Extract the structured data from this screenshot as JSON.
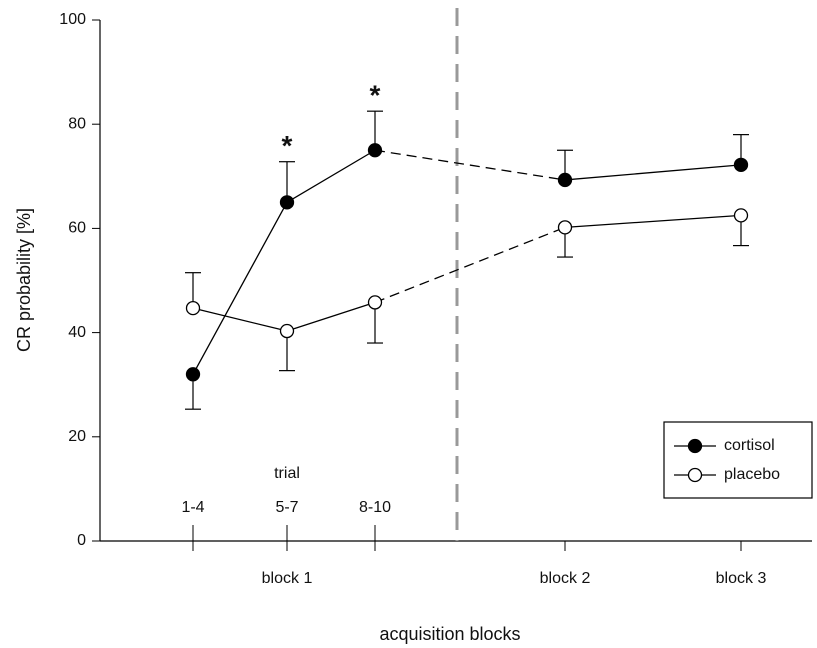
{
  "chart_data": {
    "type": "line",
    "y_label": "CR probability [%]",
    "x_label": "acquisition blocks",
    "categories": [
      "1-4",
      "5-7",
      "8-10",
      "block 2",
      "block 3"
    ],
    "group_label": "block 1",
    "trial_label": "trial",
    "ylim": [
      0,
      100
    ],
    "yticks": [
      0,
      20,
      40,
      60,
      80,
      100
    ],
    "series": [
      {
        "name": "cortisol",
        "color": "#000000",
        "filled": true,
        "values": [
          32,
          65,
          75,
          69.3,
          72.2
        ],
        "errors": [
          6.7,
          7.8,
          7.5,
          5.7,
          5.8
        ],
        "error_direction": [
          "down",
          "up",
          "up",
          "up",
          "up"
        ]
      },
      {
        "name": "placebo",
        "color": "#000000",
        "filled": false,
        "values": [
          44.7,
          40.3,
          45.8,
          60.2,
          62.5
        ],
        "errors": [
          6.8,
          7.6,
          7.8,
          5.7,
          5.8
        ],
        "error_direction": [
          "up",
          "down",
          "down",
          "down",
          "down"
        ]
      }
    ],
    "annotations": [
      {
        "text": "*",
        "index": 1
      },
      {
        "text": "*",
        "index": 2
      }
    ],
    "legend": "lower right"
  }
}
